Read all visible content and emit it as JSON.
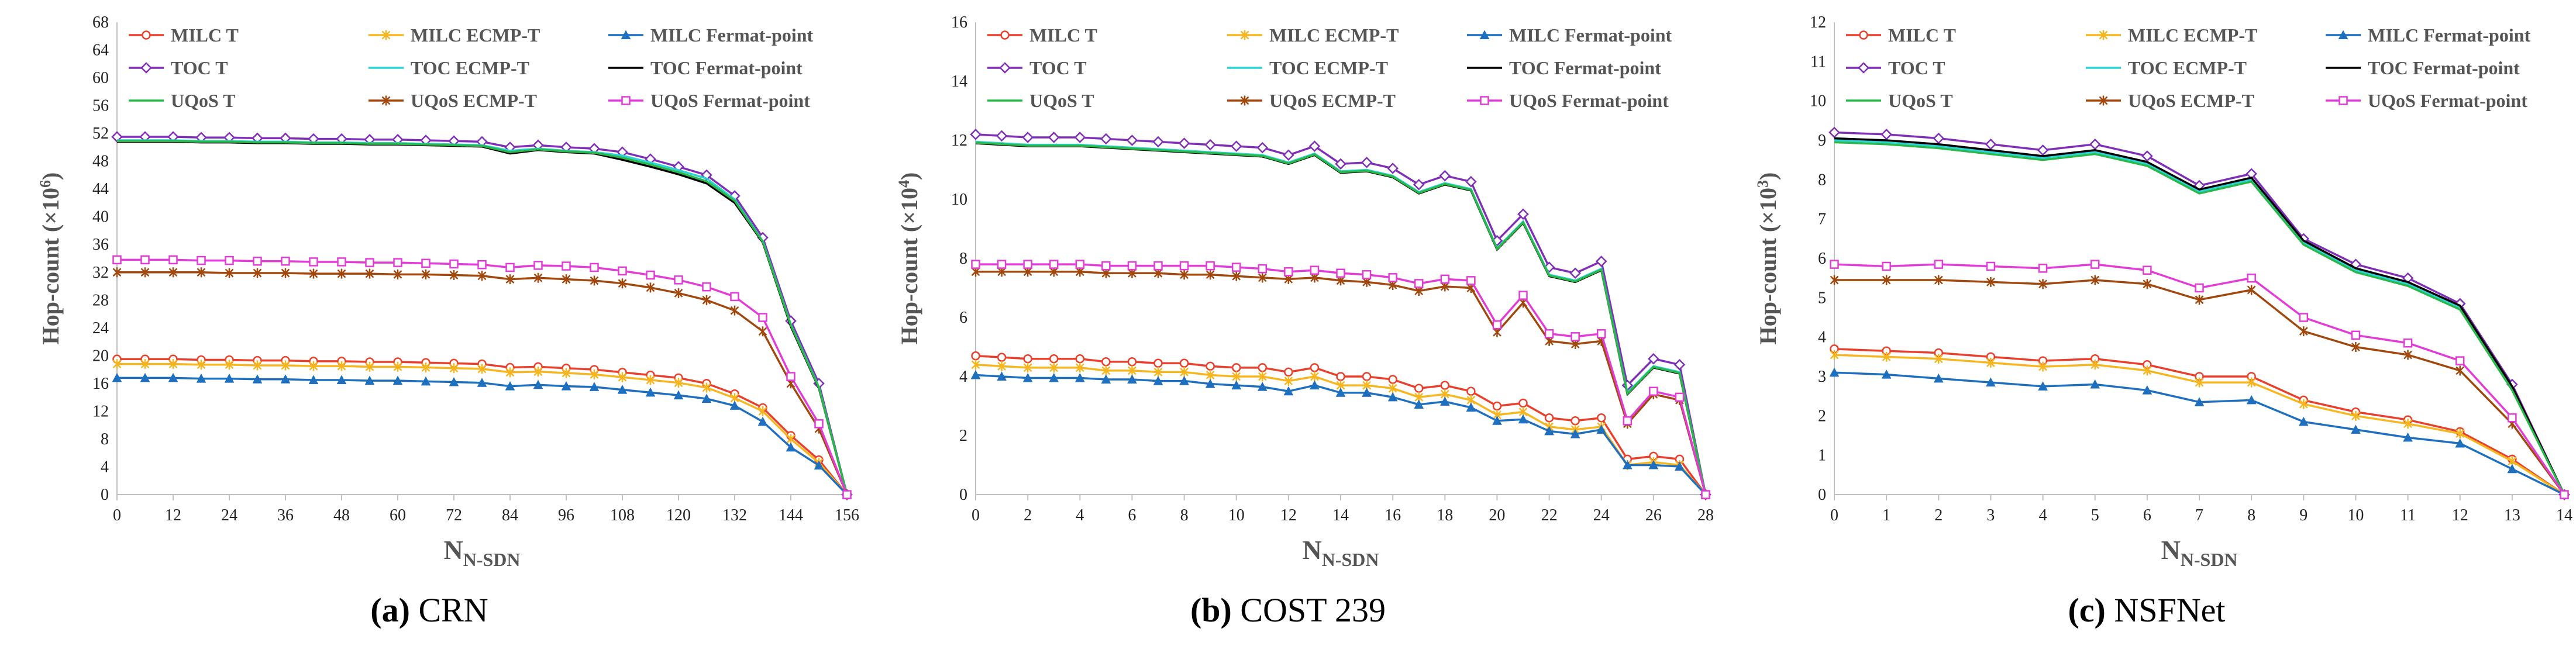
{
  "colors": {
    "MILC T": "#e8402c",
    "MILC ECMP-T": "#f5b620",
    "MILC Fermat-point": "#1f6fbf",
    "TOC T": "#7f2fb6",
    "TOC ECMP-T": "#2bd3d3",
    "TOC Fermat-point": "#000000",
    "UQoS T": "#2ab84a",
    "UQoS ECMP-T": "#a0480d",
    "UQoS Fermat-point": "#e23bd6"
  },
  "captions": [
    {
      "label": "(a)",
      "text": "CRN"
    },
    {
      "label": "(b)",
      "text": "COST 239"
    },
    {
      "label": "(c)",
      "text": "NSFNet"
    }
  ],
  "chart_data": [
    {
      "type": "line",
      "ylabel_main": "Hop-count (×10",
      "ylabel_exp": "6",
      "ylabel_close": ")",
      "xlabel_main": "N",
      "xlabel_sub": "N-SDN",
      "ylim": [
        0,
        68
      ],
      "yticks": [
        0,
        4,
        8,
        12,
        16,
        20,
        24,
        28,
        32,
        36,
        40,
        44,
        48,
        52,
        56,
        60,
        64,
        68
      ],
      "xlim": [
        0,
        156
      ],
      "xticks": [
        0,
        12,
        24,
        36,
        48,
        60,
        72,
        84,
        96,
        108,
        120,
        132,
        144,
        156
      ],
      "x": [
        0,
        6,
        12,
        18,
        24,
        30,
        36,
        42,
        48,
        54,
        60,
        66,
        72,
        78,
        84,
        90,
        96,
        102,
        108,
        114,
        120,
        126,
        132,
        138,
        144,
        150,
        156
      ],
      "legend": [
        "MILC T",
        "MILC ECMP-T",
        "MILC Fermat-point",
        "TOC T",
        "TOC ECMP-T",
        "TOC Fermat-point",
        "UQoS T",
        "UQoS ECMP-T",
        "UQoS Fermat-point"
      ],
      "series": [
        {
          "name": "MILC T",
          "values": [
            19.5,
            19.5,
            19.5,
            19.4,
            19.4,
            19.3,
            19.3,
            19.2,
            19.2,
            19.1,
            19.1,
            19.0,
            18.9,
            18.8,
            18.3,
            18.4,
            18.2,
            18.0,
            17.6,
            17.2,
            16.8,
            16.0,
            14.5,
            12.5,
            8.5,
            5.0,
            0
          ]
        },
        {
          "name": "MILC ECMP-T",
          "values": [
            18.8,
            18.8,
            18.8,
            18.7,
            18.7,
            18.6,
            18.6,
            18.5,
            18.5,
            18.4,
            18.4,
            18.3,
            18.2,
            18.1,
            17.6,
            17.7,
            17.5,
            17.3,
            16.9,
            16.5,
            16.1,
            15.4,
            13.9,
            12.0,
            8.0,
            4.6,
            0
          ]
        },
        {
          "name": "MILC Fermat-point",
          "values": [
            16.8,
            16.8,
            16.8,
            16.7,
            16.7,
            16.6,
            16.6,
            16.5,
            16.5,
            16.4,
            16.4,
            16.3,
            16.2,
            16.1,
            15.6,
            15.8,
            15.6,
            15.5,
            15.1,
            14.7,
            14.3,
            13.8,
            12.8,
            10.5,
            6.8,
            4.2,
            0
          ]
        },
        {
          "name": "TOC T",
          "values": [
            51.5,
            51.5,
            51.5,
            51.4,
            51.4,
            51.3,
            51.3,
            51.2,
            51.2,
            51.1,
            51.1,
            51.0,
            50.9,
            50.8,
            50.0,
            50.3,
            50.0,
            49.8,
            49.3,
            48.3,
            47.2,
            46.0,
            43.0,
            37.0,
            25.0,
            16.0,
            0
          ]
        },
        {
          "name": "TOC ECMP-T",
          "values": [
            51.0,
            51.0,
            51.0,
            50.9,
            50.9,
            50.8,
            50.8,
            50.7,
            50.7,
            50.6,
            50.6,
            50.5,
            50.4,
            50.3,
            49.5,
            49.8,
            49.5,
            49.3,
            48.8,
            47.8,
            46.7,
            45.5,
            42.5,
            36.5,
            24.5,
            15.5,
            0
          ]
        },
        {
          "name": "TOC Fermat-point",
          "values": [
            50.8,
            50.8,
            50.8,
            50.7,
            50.7,
            50.6,
            50.6,
            50.5,
            50.5,
            50.4,
            50.4,
            50.3,
            50.2,
            50.1,
            49.1,
            49.6,
            49.3,
            49.1,
            48.2,
            47.2,
            46.1,
            44.8,
            42.0,
            36.3,
            24.2,
            15.3,
            0
          ]
        },
        {
          "name": "UQoS T",
          "values": [
            50.9,
            50.9,
            50.9,
            50.8,
            50.8,
            50.7,
            50.7,
            50.6,
            50.6,
            50.5,
            50.5,
            50.4,
            50.3,
            50.2,
            49.3,
            49.7,
            49.4,
            49.2,
            48.5,
            47.5,
            46.4,
            45.1,
            42.3,
            36.4,
            24.4,
            15.4,
            0
          ]
        },
        {
          "name": "UQoS ECMP-T",
          "values": [
            32.0,
            32.0,
            32.0,
            32.0,
            31.9,
            31.9,
            31.9,
            31.8,
            31.8,
            31.8,
            31.7,
            31.7,
            31.6,
            31.5,
            31.0,
            31.2,
            31.0,
            30.8,
            30.4,
            29.8,
            29.0,
            28.0,
            26.5,
            23.5,
            16.0,
            9.5,
            0
          ]
        },
        {
          "name": "UQoS Fermat-point",
          "values": [
            33.8,
            33.8,
            33.8,
            33.7,
            33.7,
            33.6,
            33.6,
            33.5,
            33.5,
            33.4,
            33.4,
            33.3,
            33.2,
            33.1,
            32.7,
            33.0,
            32.9,
            32.7,
            32.2,
            31.6,
            30.9,
            29.9,
            28.5,
            25.5,
            17.0,
            10.2,
            0
          ]
        }
      ]
    },
    {
      "type": "line",
      "ylabel_main": "Hop-count (×10",
      "ylabel_exp": "4",
      "ylabel_close": ")",
      "xlabel_main": "N",
      "xlabel_sub": "N-SDN",
      "ylim": [
        0,
        16
      ],
      "yticks": [
        0,
        2,
        4,
        6,
        8,
        10,
        12,
        14,
        16
      ],
      "xlim": [
        0,
        28
      ],
      "xticks": [
        0,
        2,
        4,
        6,
        8,
        10,
        12,
        14,
        16,
        18,
        20,
        22,
        24,
        26,
        28
      ],
      "x": [
        0,
        1,
        2,
        3,
        4,
        5,
        6,
        7,
        8,
        9,
        10,
        11,
        12,
        13,
        14,
        15,
        16,
        17,
        18,
        19,
        20,
        21,
        22,
        23,
        24,
        25,
        26,
        27,
        28
      ],
      "legend": [
        "MILC T",
        "MILC ECMP-T",
        "MILC Fermat-point",
        "TOC T",
        "TOC ECMP-T",
        "TOC Fermat-point",
        "UQoS T",
        "UQoS ECMP-T",
        "UQoS Fermat-point"
      ],
      "series": [
        {
          "name": "MILC T",
          "values": [
            4.7,
            4.65,
            4.6,
            4.6,
            4.6,
            4.5,
            4.5,
            4.45,
            4.45,
            4.35,
            4.3,
            4.3,
            4.15,
            4.3,
            4.0,
            4.0,
            3.9,
            3.6,
            3.7,
            3.5,
            3.0,
            3.1,
            2.6,
            2.5,
            2.6,
            1.2,
            1.3,
            1.2,
            0
          ]
        },
        {
          "name": "MILC ECMP-T",
          "values": [
            4.4,
            4.35,
            4.3,
            4.3,
            4.3,
            4.2,
            4.2,
            4.15,
            4.15,
            4.05,
            4.0,
            4.0,
            3.85,
            4.0,
            3.7,
            3.7,
            3.6,
            3.3,
            3.4,
            3.2,
            2.7,
            2.8,
            2.3,
            2.2,
            2.3,
            1.0,
            1.1,
            1.0,
            0
          ]
        },
        {
          "name": "MILC Fermat-point",
          "values": [
            4.05,
            4.0,
            3.95,
            3.95,
            3.95,
            3.9,
            3.9,
            3.85,
            3.85,
            3.75,
            3.7,
            3.65,
            3.5,
            3.7,
            3.45,
            3.45,
            3.3,
            3.05,
            3.15,
            2.95,
            2.5,
            2.55,
            2.15,
            2.05,
            2.2,
            1.0,
            1.0,
            0.95,
            0
          ]
        },
        {
          "name": "TOC T",
          "values": [
            12.2,
            12.15,
            12.1,
            12.1,
            12.1,
            12.05,
            12.0,
            11.95,
            11.9,
            11.85,
            11.8,
            11.75,
            11.5,
            11.8,
            11.2,
            11.25,
            11.05,
            10.5,
            10.8,
            10.6,
            8.6,
            9.5,
            7.7,
            7.5,
            7.9,
            3.7,
            4.6,
            4.4,
            0
          ]
        },
        {
          "name": "TOC ECMP-T",
          "values": [
            11.95,
            11.9,
            11.85,
            11.85,
            11.85,
            11.8,
            11.75,
            11.7,
            11.65,
            11.6,
            11.55,
            11.5,
            11.25,
            11.55,
            10.95,
            11.0,
            10.8,
            10.25,
            10.55,
            10.35,
            8.35,
            9.25,
            7.45,
            7.25,
            7.65,
            3.45,
            4.35,
            4.15,
            0
          ]
        },
        {
          "name": "TOC Fermat-point",
          "values": [
            11.9,
            11.85,
            11.8,
            11.8,
            11.8,
            11.75,
            11.7,
            11.65,
            11.6,
            11.55,
            11.5,
            11.45,
            11.2,
            11.5,
            10.9,
            10.95,
            10.75,
            10.2,
            10.5,
            10.3,
            8.3,
            9.2,
            7.4,
            7.2,
            7.6,
            3.4,
            4.3,
            4.1,
            0
          ]
        },
        {
          "name": "UQoS T",
          "values": [
            11.92,
            11.87,
            11.82,
            11.82,
            11.82,
            11.77,
            11.72,
            11.67,
            11.62,
            11.57,
            11.52,
            11.47,
            11.22,
            11.52,
            10.92,
            10.97,
            10.77,
            10.22,
            10.52,
            10.32,
            8.32,
            9.22,
            7.42,
            7.22,
            7.62,
            3.42,
            4.32,
            4.12,
            0
          ]
        },
        {
          "name": "UQoS ECMP-T",
          "values": [
            7.55,
            7.55,
            7.55,
            7.55,
            7.55,
            7.5,
            7.5,
            7.5,
            7.45,
            7.45,
            7.4,
            7.35,
            7.3,
            7.35,
            7.25,
            7.2,
            7.1,
            6.9,
            7.05,
            7.0,
            5.5,
            6.5,
            5.2,
            5.1,
            5.2,
            2.4,
            3.4,
            3.2,
            0
          ]
        },
        {
          "name": "UQoS Fermat-point",
          "values": [
            7.8,
            7.8,
            7.8,
            7.8,
            7.8,
            7.75,
            7.75,
            7.75,
            7.75,
            7.75,
            7.7,
            7.65,
            7.55,
            7.6,
            7.5,
            7.45,
            7.35,
            7.15,
            7.3,
            7.25,
            5.75,
            6.75,
            5.45,
            5.35,
            5.45,
            2.5,
            3.5,
            3.3,
            0
          ]
        }
      ]
    },
    {
      "type": "line",
      "ylabel_main": "Hop-count (×10",
      "ylabel_exp": "3",
      "ylabel_close": ")",
      "xlabel_main": "N",
      "xlabel_sub": "N-SDN",
      "ylim": [
        0,
        12
      ],
      "yticks": [
        0,
        1,
        2,
        3,
        4,
        5,
        6,
        7,
        8,
        9,
        10,
        11,
        12
      ],
      "xlim": [
        0,
        14
      ],
      "xticks": [
        0,
        1,
        2,
        3,
        4,
        5,
        6,
        7,
        8,
        9,
        10,
        11,
        12,
        13,
        14
      ],
      "x": [
        0,
        1,
        2,
        3,
        4,
        5,
        6,
        7,
        8,
        9,
        10,
        11,
        12,
        13,
        14
      ],
      "legend": [
        "MILC T",
        "MILC ECMP-T",
        "MILC Fermat-point",
        "TOC T",
        "TOC ECMP-T",
        "TOC Fermat-point",
        "UQoS T",
        "UQoS ECMP-T",
        "UQoS Fermat-point"
      ],
      "series": [
        {
          "name": "MILC T",
          "values": [
            3.7,
            3.65,
            3.6,
            3.5,
            3.4,
            3.45,
            3.3,
            3.0,
            3.0,
            2.4,
            2.1,
            1.9,
            1.6,
            0.9,
            0
          ]
        },
        {
          "name": "MILC ECMP-T",
          "values": [
            3.55,
            3.5,
            3.45,
            3.35,
            3.25,
            3.3,
            3.15,
            2.85,
            2.85,
            2.3,
            2.0,
            1.8,
            1.55,
            0.85,
            0
          ]
        },
        {
          "name": "MILC Fermat-point",
          "values": [
            3.1,
            3.05,
            2.95,
            2.85,
            2.75,
            2.8,
            2.65,
            2.35,
            2.4,
            1.85,
            1.65,
            1.45,
            1.3,
            0.65,
            0
          ]
        },
        {
          "name": "TOC T",
          "values": [
            9.2,
            9.15,
            9.05,
            8.9,
            8.75,
            8.9,
            8.6,
            7.85,
            8.15,
            6.5,
            5.85,
            5.5,
            4.85,
            2.8,
            0
          ]
        },
        {
          "name": "TOC ECMP-T",
          "values": [
            9.0,
            8.95,
            8.85,
            8.7,
            8.55,
            8.7,
            8.4,
            7.7,
            8.0,
            6.4,
            5.7,
            5.35,
            4.75,
            2.7,
            0
          ]
        },
        {
          "name": "TOC Fermat-point",
          "values": [
            9.05,
            9.0,
            8.9,
            8.75,
            8.6,
            8.75,
            8.45,
            7.75,
            8.05,
            6.45,
            5.75,
            5.4,
            4.8,
            2.75,
            0
          ]
        },
        {
          "name": "UQoS T",
          "values": [
            8.95,
            8.9,
            8.8,
            8.65,
            8.5,
            8.65,
            8.35,
            7.65,
            7.95,
            6.35,
            5.65,
            5.3,
            4.7,
            2.65,
            0
          ]
        },
        {
          "name": "UQoS ECMP-T",
          "values": [
            5.45,
            5.45,
            5.45,
            5.4,
            5.35,
            5.45,
            5.35,
            4.95,
            5.2,
            4.15,
            3.75,
            3.55,
            3.15,
            1.8,
            0
          ]
        },
        {
          "name": "UQoS Fermat-point",
          "values": [
            5.85,
            5.8,
            5.85,
            5.8,
            5.75,
            5.85,
            5.7,
            5.25,
            5.5,
            4.5,
            4.05,
            3.85,
            3.4,
            1.95,
            0
          ]
        }
      ]
    }
  ]
}
